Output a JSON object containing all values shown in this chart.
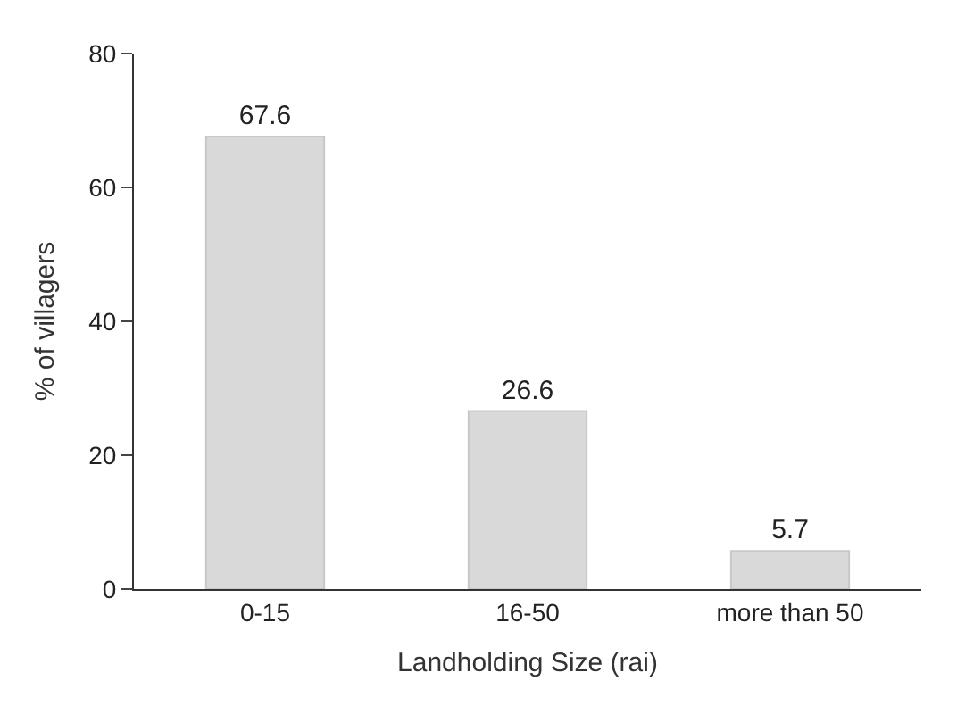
{
  "chart_data": {
    "type": "bar",
    "xlabel": "Landholding Size (rai)",
    "ylabel": "% of villagers",
    "categories": [
      "0-15",
      "16-50",
      "more than 50"
    ],
    "values": [
      67.6,
      26.6,
      5.7
    ],
    "color": "#d9d9d9",
    "ylim": [
      0,
      80
    ],
    "yticks": [
      0,
      20,
      40,
      60,
      80
    ],
    "data_labels": true,
    "legend": false
  }
}
